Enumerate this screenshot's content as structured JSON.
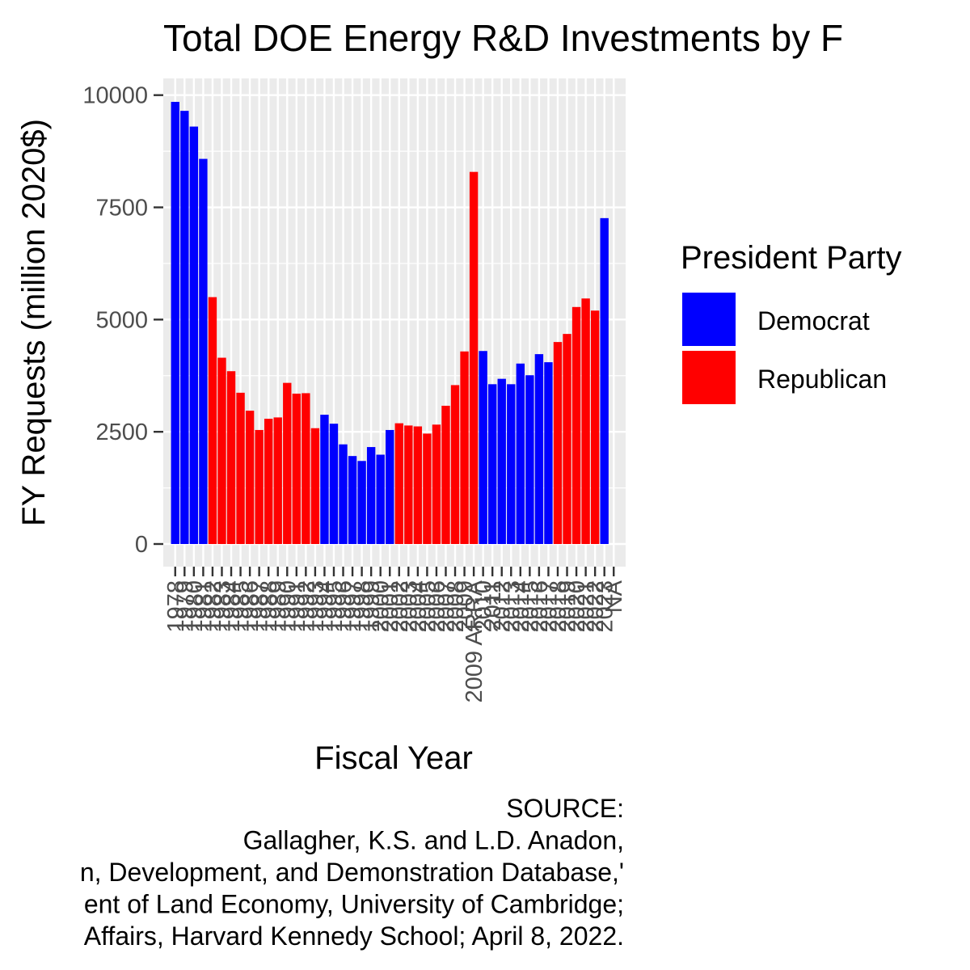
{
  "chart_data": {
    "type": "bar",
    "title": "Total DOE Energy R&D Investments by F",
    "xlabel": "Fiscal Year",
    "ylabel": "FY Requests (million 2020$)",
    "ylim": [
      0,
      10300
    ],
    "yticks": [
      0,
      2500,
      5000,
      7500,
      10000
    ],
    "grid": true,
    "legend": {
      "title": "President Party",
      "placement": "right",
      "entries": [
        {
          "label": "Democrat",
          "color": "#0000ff"
        },
        {
          "label": "Republican",
          "color": "#ff0000"
        }
      ]
    },
    "colors": {
      "Democrat": "#0000ff",
      "Republican": "#ff0000"
    },
    "categories": [
      "1978",
      "1979",
      "1980",
      "1981",
      "1982",
      "1983",
      "1984",
      "1985",
      "1986",
      "1987",
      "1988",
      "1989",
      "1990",
      "1991",
      "1992",
      "1993",
      "1994",
      "1995",
      "1996",
      "1997",
      "1998",
      "1999",
      "2000",
      "2001",
      "2002",
      "2003",
      "2004",
      "2005",
      "2006",
      "2007",
      "2008",
      "2009",
      "2009 ARRA",
      "2010",
      "2011",
      "2012",
      "2013",
      "2014",
      "2015",
      "2016",
      "2017",
      "2018",
      "2019",
      "2020",
      "2021",
      "2022",
      "2023",
      "NA"
    ],
    "values": [
      9850,
      9650,
      9300,
      8580,
      5500,
      4150,
      3850,
      3370,
      2970,
      2540,
      2790,
      2820,
      3590,
      3350,
      3360,
      2580,
      2880,
      2680,
      2220,
      1960,
      1850,
      2160,
      1990,
      2540,
      2690,
      2640,
      2620,
      2460,
      2660,
      3080,
      3540,
      4290,
      8290,
      4300,
      3560,
      3680,
      3560,
      4020,
      3760,
      4230,
      4050,
      4500,
      4680,
      5280,
      5470,
      5200,
      7260,
      0
    ],
    "parties": [
      "Democrat",
      "Democrat",
      "Democrat",
      "Democrat",
      "Republican",
      "Republican",
      "Republican",
      "Republican",
      "Republican",
      "Republican",
      "Republican",
      "Republican",
      "Republican",
      "Republican",
      "Republican",
      "Republican",
      "Democrat",
      "Democrat",
      "Democrat",
      "Democrat",
      "Democrat",
      "Democrat",
      "Democrat",
      "Democrat",
      "Republican",
      "Republican",
      "Republican",
      "Republican",
      "Republican",
      "Republican",
      "Republican",
      "Republican",
      "Republican",
      "Democrat",
      "Democrat",
      "Democrat",
      "Democrat",
      "Democrat",
      "Democrat",
      "Democrat",
      "Democrat",
      "Republican",
      "Republican",
      "Republican",
      "Republican",
      "Republican",
      "Democrat",
      "Democrat"
    ],
    "caption": [
      "SOURCE:",
      "Gallagher, K.S. and L.D. Anadon,",
      "n, Development, and Demonstration Database,'",
      "ent of Land Economy, University of Cambridge;",
      " Affairs, Harvard Kennedy School; April 8, 2022."
    ]
  }
}
